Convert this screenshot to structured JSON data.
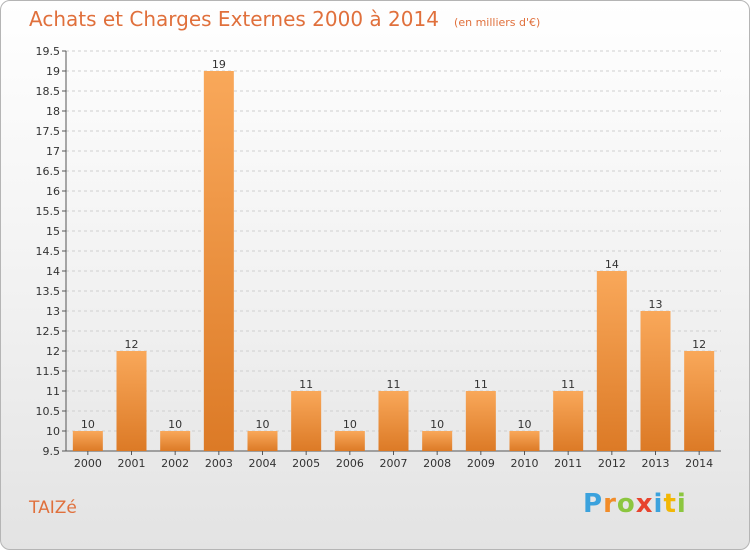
{
  "header": {
    "title": "Achats et Charges Externes 2000 à 2014",
    "unit": "(en milliers d'€)"
  },
  "footer": {
    "town": "TAIZé",
    "brand_letters": [
      "P",
      "r",
      "o",
      "x",
      "i",
      "t",
      "i"
    ],
    "brand_colors": [
      "#3ba2dd",
      "#f28c28",
      "#8cc63f",
      "#e8442e",
      "#3ba2dd",
      "#f2b705",
      "#8cc63f"
    ]
  },
  "colors": {
    "bar_light": "#f9a85a",
    "bar_dark": "#dc7a26",
    "axis": "#555555",
    "grid": "#cfcfcf",
    "text": "#333333"
  },
  "chart_data": {
    "type": "bar",
    "categories": [
      "2000",
      "2001",
      "2002",
      "2003",
      "2004",
      "2005",
      "2006",
      "2007",
      "2008",
      "2009",
      "2010",
      "2011",
      "2012",
      "2013",
      "2014"
    ],
    "values": [
      10,
      12,
      10,
      19,
      10,
      11,
      10,
      11,
      10,
      11,
      10,
      11,
      14,
      13,
      12
    ],
    "data_labels": [
      "10",
      "12",
      "10",
      "19",
      "10",
      "11",
      "10",
      "11",
      "10",
      "11",
      "10",
      "11",
      "14",
      "13",
      "12"
    ],
    "title": "Achats et Charges Externes 2000 à 2014",
    "xlabel": "",
    "ylabel": "",
    "ylim": [
      9.5,
      19.5
    ],
    "yticks": [
      9.5,
      10,
      10.5,
      11,
      11.5,
      12,
      12.5,
      13,
      13.5,
      14,
      14.5,
      15,
      15.5,
      16,
      16.5,
      17,
      17.5,
      18,
      18.5,
      19,
      19.5
    ],
    "ytick_labels": [
      "9.5",
      "10",
      "10.5",
      "11",
      "11.5",
      "12",
      "12.5",
      "13",
      "13.5",
      "14",
      "14.5",
      "15",
      "15.5",
      "16",
      "16.5",
      "17",
      "17.5",
      "18",
      "18.5",
      "19",
      "19.5"
    ],
    "grid": true
  }
}
